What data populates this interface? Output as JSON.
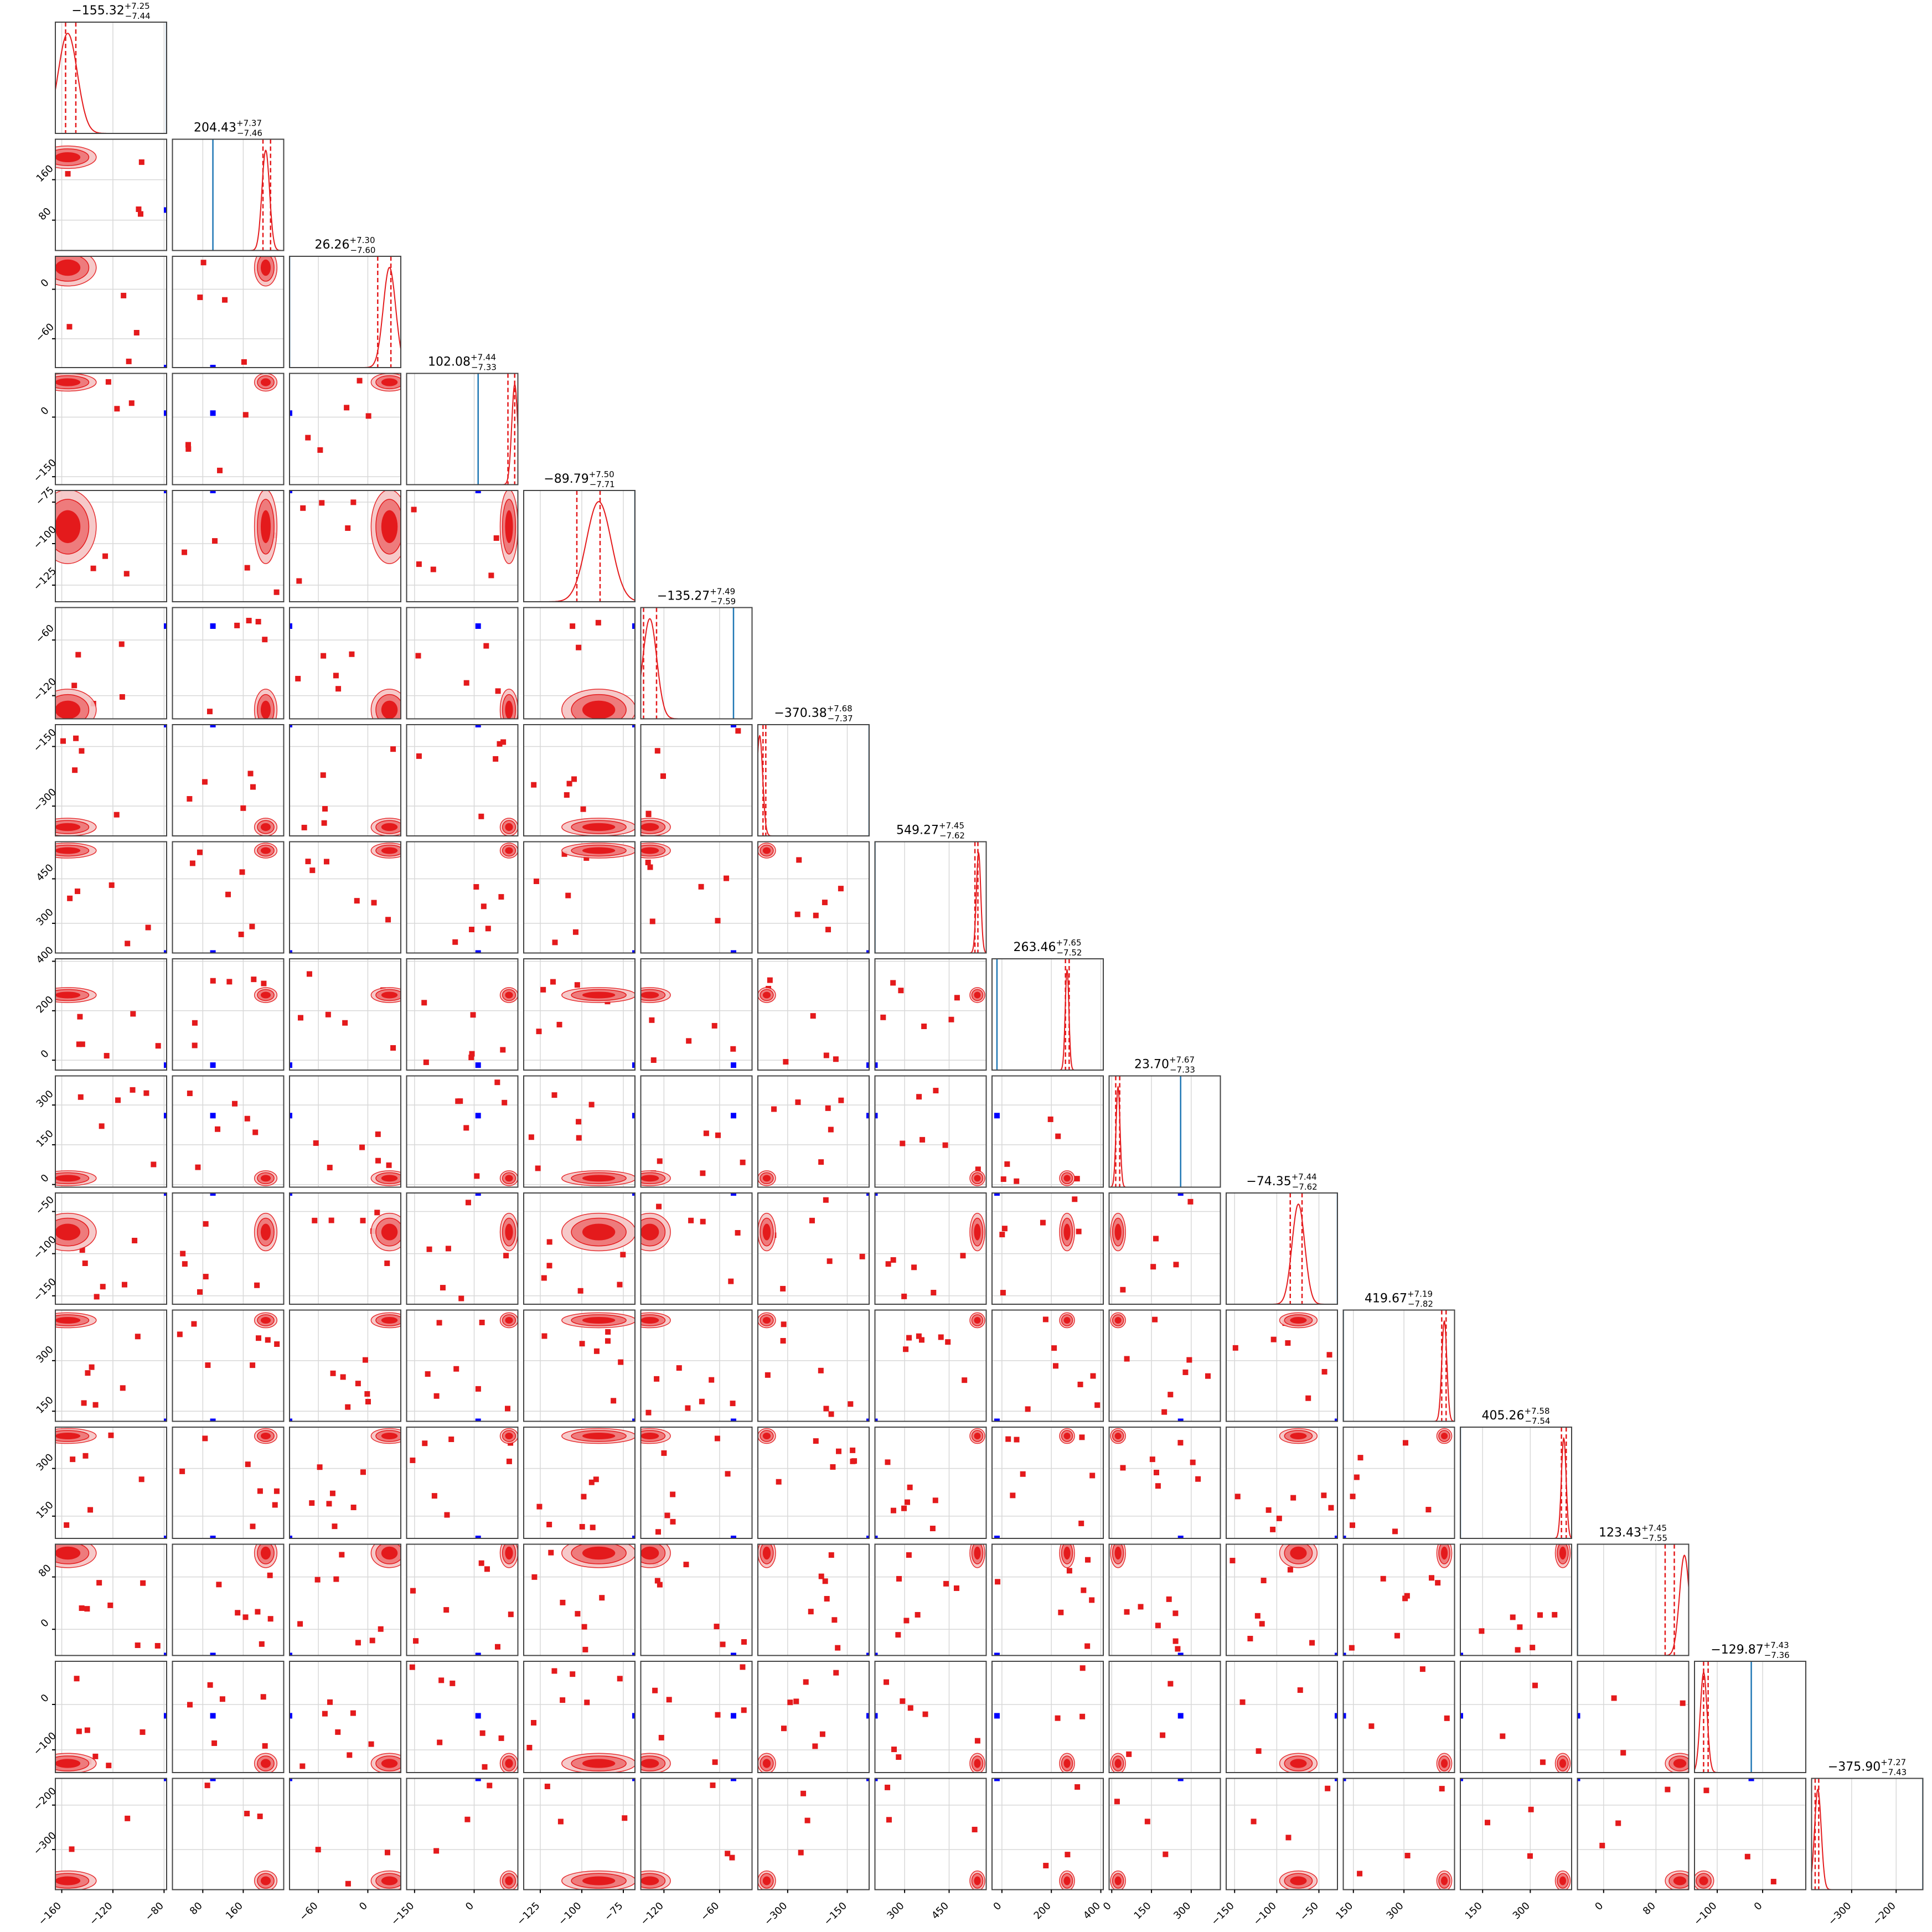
{
  "chart_data": {
    "type": "corner",
    "n_params": 16,
    "colors": {
      "posterior": "#e41a1c",
      "reference": "#1f77b4",
      "marker": "#0000ff"
    },
    "grid": true,
    "params": [
      {
        "title_value": "−155.32",
        "plus": "+7.25",
        "minus": "−7.44",
        "median": -155.32,
        "hist_range": [
          -165,
          -78
        ],
        "ticks": [
          -160,
          -120,
          -80
        ],
        "tick_labels": [
          "−160",
          "−120",
          "−80"
        ],
        "ref": -78,
        "ci": [
          -157,
          -149
        ]
      },
      {
        "title_value": "204.43",
        "plus": "+7.37",
        "minus": "−7.46",
        "median": 204.43,
        "hist_range": [
          20,
          240
        ],
        "ticks": [
          80,
          160
        ],
        "tick_labels": [
          "80",
          "160"
        ],
        "ref": 100,
        "ci": [
          199,
          214
        ]
      },
      {
        "title_value": "26.26",
        "plus": "+7.30",
        "minus": "−7.60",
        "median": 26.26,
        "hist_range": [
          -95,
          40
        ],
        "ticks": [
          -60,
          0
        ],
        "tick_labels": [
          "−60",
          "0"
        ],
        "ref": -95,
        "ci": [
          12,
          28
        ]
      },
      {
        "title_value": "102.08",
        "plus": "+7.44",
        "minus": "−7.33",
        "median": 102.08,
        "hist_range": [
          -170,
          110
        ],
        "ticks": [
          -150,
          0
        ],
        "tick_labels": [
          "−150",
          "0"
        ],
        "ref": 10,
        "ci": [
          85,
          102
        ]
      },
      {
        "title_value": "−89.79",
        "plus": "+7.50",
        "minus": "−7.71",
        "median": -89.79,
        "hist_range": [
          -135,
          -68
        ],
        "ticks": [
          -125,
          -100,
          -75
        ],
        "tick_labels": [
          "−125",
          "−100",
          "−75"
        ],
        "ref": -68,
        "ci": [
          -103,
          -89
        ]
      },
      {
        "title_value": "−135.27",
        "plus": "+7.49",
        "minus": "−7.59",
        "median": -135.27,
        "hist_range": [
          -145,
          -25
        ],
        "ticks": [
          -120,
          -60
        ],
        "tick_labels": [
          "−120",
          "−60"
        ],
        "ref": -45,
        "ci": [
          -142,
          -128
        ]
      },
      {
        "title_value": "−370.38",
        "plus": "+7.68",
        "minus": "−7.37",
        "median": -370.38,
        "hist_range": [
          -375,
          -95
        ],
        "ticks": [
          -300,
          -150
        ],
        "tick_labels": [
          "−300",
          "−150"
        ],
        "ref": -95,
        "ci": [
          -362,
          -355
        ]
      },
      {
        "title_value": "549.27",
        "plus": "+7.45",
        "minus": "−7.62",
        "median": 549.27,
        "hist_range": [
          200,
          575
        ],
        "ticks": [
          300,
          450
        ],
        "tick_labels": [
          "300",
          "450"
        ],
        "ref": 200,
        "ci": [
          537,
          547
        ]
      },
      {
        "title_value": "263.46",
        "plus": "+7.65",
        "minus": "−7.52",
        "median": 263.46,
        "hist_range": [
          -40,
          410
        ],
        "ticks": [
          0,
          200,
          400
        ],
        "tick_labels": [
          "0",
          "200",
          "400"
        ],
        "ref": -20,
        "ci": [
          257,
          272
        ]
      },
      {
        "title_value": "23.70",
        "plus": "+7.67",
        "minus": "−7.33",
        "median": 23.7,
        "hist_range": [
          -10,
          410
        ],
        "ticks": [
          0,
          150,
          300
        ],
        "tick_labels": [
          "0",
          "150",
          "300"
        ],
        "ref": 260,
        "ci": [
          15,
          30
        ]
      },
      {
        "title_value": "−74.35",
        "plus": "+7.44",
        "minus": "−7.62",
        "median": -74.35,
        "hist_range": [
          -160,
          -28
        ],
        "ticks": [
          -150,
          -100,
          -50
        ],
        "tick_labels": [
          "−150",
          "−100",
          "−50"
        ],
        "ref": -28,
        "ci": [
          -84,
          -70
        ]
      },
      {
        "title_value": "419.67",
        "plus": "+7.19",
        "minus": "−7.82",
        "median": 419.67,
        "hist_range": [
          120,
          450
        ],
        "ticks": [
          150,
          300
        ],
        "tick_labels": [
          "150",
          "300"
        ],
        "ref": 120,
        "ci": [
          412,
          425
        ]
      },
      {
        "title_value": "405.26",
        "plus": "+7.58",
        "minus": "−7.54",
        "median": 405.26,
        "hist_range": [
          80,
          430
        ],
        "ticks": [
          150,
          300
        ],
        "tick_labels": [
          "150",
          "300"
        ],
        "ref": 80,
        "ci": [
          398,
          413
        ]
      },
      {
        "title_value": "123.43",
        "plus": "+7.45",
        "minus": "−7.55",
        "median": 123.43,
        "hist_range": [
          -40,
          130
        ],
        "ticks": [
          0,
          80
        ],
        "tick_labels": [
          "0",
          "80"
        ],
        "ref": -40,
        "ci": [
          94,
          108
        ]
      },
      {
        "title_value": "−129.87",
        "plus": "+7.43",
        "minus": "−7.36",
        "median": -129.87,
        "hist_range": [
          -150,
          95
        ],
        "ticks": [
          -100,
          0
        ],
        "tick_labels": [
          "−100",
          "0"
        ],
        "ref": -25,
        "ci": [
          -130,
          -120
        ]
      },
      {
        "title_value": "−375.90",
        "plus": "+7.27",
        "minus": "−7.43",
        "median": -375.9,
        "hist_range": [
          -390,
          -140
        ],
        "ticks": [
          -300,
          -200
        ],
        "tick_labels": [
          "−300",
          "−200"
        ],
        "ref": -140,
        "ci": [
          -382,
          -374
        ]
      }
    ]
  }
}
